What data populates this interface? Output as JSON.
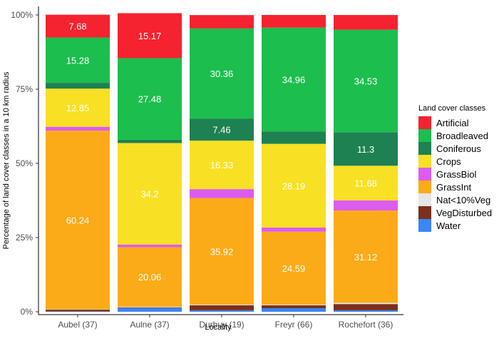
{
  "chart_data": {
    "type": "bar",
    "stacked": true,
    "xlabel": "Locality",
    "ylabel": "Percentage of land cover classes in a 10 km radius",
    "ylim": [
      0,
      100
    ],
    "yticks": [
      "0%",
      "25%",
      "50%",
      "75%",
      "100%"
    ],
    "categories": [
      "Aubel (37)",
      "Aulne (37)",
      "Durbuy (19)",
      "Freyr (66)",
      "Rochefort (36)"
    ],
    "legend_title": "Land cover classes",
    "legend_position": "right",
    "series": [
      {
        "name": "Water",
        "color": "#3a86f5",
        "values": [
          0.1,
          1.3,
          0.5,
          1.2,
          0.5
        ]
      },
      {
        "name": "VegDisturbed",
        "color": "#7b2f1e",
        "values": [
          0.6,
          0.2,
          1.7,
          1.0,
          2.1
        ]
      },
      {
        "name": "Nat<10%Veg",
        "color": "#e6e6e6",
        "values": [
          0.1,
          0.2,
          0.2,
          0.2,
          0.4
        ]
      },
      {
        "name": "GrassInt",
        "color": "#fbab18",
        "values": [
          60.24,
          20.06,
          35.92,
          24.59,
          31.12
        ]
      },
      {
        "name": "GrassBiol",
        "color": "#dd5cf0",
        "values": [
          1.3,
          0.9,
          3.0,
          1.4,
          3.4
        ]
      },
      {
        "name": "Crops",
        "color": "#f8e024",
        "values": [
          12.85,
          34.2,
          16.33,
          28.19,
          11.68
        ]
      },
      {
        "name": "Coniferous",
        "color": "#1e8152",
        "values": [
          1.95,
          1.1,
          7.46,
          4.2,
          11.3
        ]
      },
      {
        "name": "Broadleaved",
        "color": "#1cbe4e",
        "values": [
          15.28,
          27.48,
          30.36,
          34.96,
          34.53
        ]
      },
      {
        "name": "Artificial",
        "color": "#f4232f",
        "values": [
          7.68,
          15.17,
          4.5,
          4.26,
          4.96
        ]
      }
    ],
    "data_labels": [
      {
        "series": "GrassInt",
        "category": 0,
        "text": "60.24"
      },
      {
        "series": "Crops",
        "category": 0,
        "text": "12.85"
      },
      {
        "series": "Broadleaved",
        "category": 0,
        "text": "15.28"
      },
      {
        "series": "Artificial",
        "category": 0,
        "text": "7.68"
      },
      {
        "series": "GrassInt",
        "category": 1,
        "text": "20.06"
      },
      {
        "series": "Crops",
        "category": 1,
        "text": "34.2"
      },
      {
        "series": "Broadleaved",
        "category": 1,
        "text": "27.48"
      },
      {
        "series": "Artificial",
        "category": 1,
        "text": "15.17"
      },
      {
        "series": "GrassInt",
        "category": 2,
        "text": "35.92"
      },
      {
        "series": "Crops",
        "category": 2,
        "text": "16.33"
      },
      {
        "series": "Coniferous",
        "category": 2,
        "text": "7.46"
      },
      {
        "series": "Broadleaved",
        "category": 2,
        "text": "30.36"
      },
      {
        "series": "GrassInt",
        "category": 3,
        "text": "24.59"
      },
      {
        "series": "Crops",
        "category": 3,
        "text": "28.19"
      },
      {
        "series": "Broadleaved",
        "category": 3,
        "text": "34.96"
      },
      {
        "series": "GrassInt",
        "category": 4,
        "text": "31.12"
      },
      {
        "series": "Crops",
        "category": 4,
        "text": "11.68"
      },
      {
        "series": "Coniferous",
        "category": 4,
        "text": "11.3"
      },
      {
        "series": "Broadleaved",
        "category": 4,
        "text": "34.53"
      }
    ],
    "legend_order": [
      "Artificial",
      "Broadleaved",
      "Coniferous",
      "Crops",
      "GrassBiol",
      "GrassInt",
      "Nat<10%Veg",
      "VegDisturbed",
      "Water"
    ]
  }
}
